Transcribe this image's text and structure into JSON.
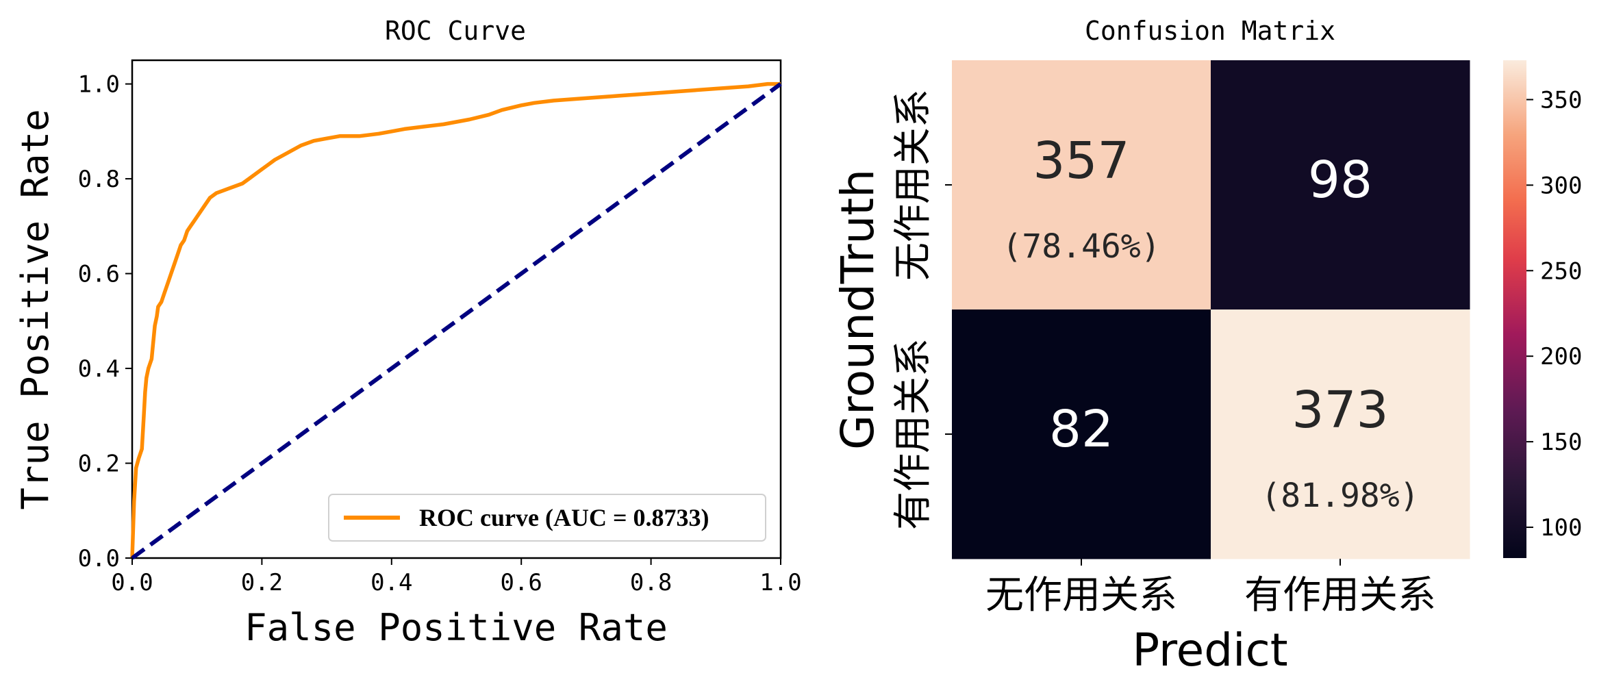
{
  "chart_data": [
    {
      "type": "line",
      "title": "ROC Curve",
      "xlabel": "False Positive Rate",
      "ylabel": "True Positive Rate",
      "xlim": [
        0.0,
        1.0
      ],
      "ylim": [
        0.0,
        1.05
      ],
      "xticks": [
        "0.0",
        "0.2",
        "0.4",
        "0.6",
        "0.8",
        "1.0"
      ],
      "yticks": [
        "0.0",
        "0.2",
        "0.4",
        "0.6",
        "0.8",
        "1.0"
      ],
      "legend_placement": "lower-right",
      "grid": false,
      "series": [
        {
          "name": "ROC curve (AUC = 0.8733)",
          "color": "#ff8c00",
          "style": "solid",
          "x": [
            0.0,
            0.003,
            0.006,
            0.01,
            0.015,
            0.018,
            0.02,
            0.022,
            0.025,
            0.03,
            0.035,
            0.038,
            0.04,
            0.045,
            0.05,
            0.055,
            0.06,
            0.065,
            0.07,
            0.075,
            0.08,
            0.085,
            0.09,
            0.095,
            0.1,
            0.11,
            0.12,
            0.13,
            0.14,
            0.15,
            0.17,
            0.18,
            0.19,
            0.2,
            0.21,
            0.22,
            0.24,
            0.26,
            0.28,
            0.3,
            0.32,
            0.35,
            0.38,
            0.4,
            0.42,
            0.45,
            0.48,
            0.5,
            0.52,
            0.55,
            0.57,
            0.6,
            0.62,
            0.65,
            0.7,
            0.75,
            0.78,
            0.8,
            0.85,
            0.9,
            0.95,
            0.98,
            1.0
          ],
          "y": [
            0.0,
            0.12,
            0.19,
            0.21,
            0.23,
            0.3,
            0.35,
            0.38,
            0.4,
            0.42,
            0.49,
            0.51,
            0.53,
            0.54,
            0.56,
            0.58,
            0.6,
            0.62,
            0.64,
            0.66,
            0.67,
            0.69,
            0.7,
            0.71,
            0.72,
            0.74,
            0.76,
            0.77,
            0.775,
            0.78,
            0.79,
            0.8,
            0.81,
            0.82,
            0.83,
            0.84,
            0.855,
            0.87,
            0.88,
            0.885,
            0.89,
            0.89,
            0.895,
            0.9,
            0.905,
            0.91,
            0.915,
            0.92,
            0.925,
            0.935,
            0.945,
            0.955,
            0.96,
            0.965,
            0.97,
            0.975,
            0.978,
            0.98,
            0.985,
            0.99,
            0.995,
            1.0,
            1.0
          ]
        },
        {
          "name": "",
          "color": "#000080",
          "style": "dashed",
          "x": [
            0.0,
            1.0
          ],
          "y": [
            0.0,
            1.0
          ]
        }
      ]
    },
    {
      "type": "heatmap",
      "title": "Confusion Matrix",
      "xlabel": "Predict",
      "ylabel": "GroundTruth",
      "x_categories": [
        "无作用关系",
        "有作用关系"
      ],
      "y_categories": [
        "无作用关系",
        "有作用关系"
      ],
      "values": [
        [
          357,
          98
        ],
        [
          82,
          373
        ]
      ],
      "cell_labels": [
        [
          "357",
          "98"
        ],
        [
          "82",
          "373"
        ]
      ],
      "diagonal_percent_labels": [
        "(78.46%)",
        "(81.98%)"
      ],
      "colorbar": {
        "min": 82,
        "max": 373,
        "ticks": [
          "100",
          "150",
          "200",
          "250",
          "300",
          "350"
        ]
      },
      "colormap": "rocket"
    }
  ]
}
